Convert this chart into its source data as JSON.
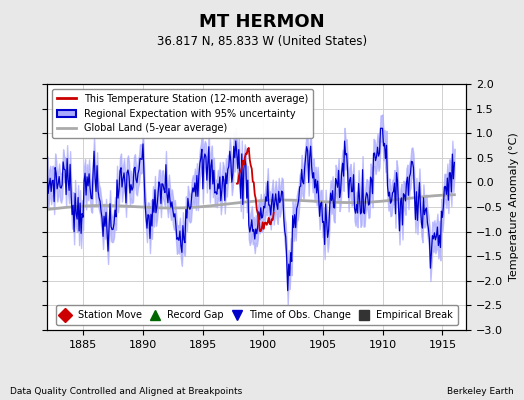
{
  "title": "MT HERMON",
  "subtitle": "36.817 N, 85.833 W (United States)",
  "xlabel_left": "Data Quality Controlled and Aligned at Breakpoints",
  "xlabel_right": "Berkeley Earth",
  "ylabel": "Temperature Anomaly (°C)",
  "xlim": [
    1882,
    1917
  ],
  "ylim": [
    -3,
    2
  ],
  "yticks": [
    -3,
    -2.5,
    -2,
    -1.5,
    -1,
    -0.5,
    0,
    0.5,
    1,
    1.5,
    2
  ],
  "xticks": [
    1885,
    1890,
    1895,
    1900,
    1905,
    1910,
    1915
  ],
  "bg_color": "#e8e8e8",
  "plot_bg_color": "#ffffff",
  "grid_color": "#cccccc",
  "blue_line_color": "#0000cc",
  "blue_fill_color": "#aaaaff",
  "red_line_color": "#cc0000",
  "gray_line_color": "#aaaaaa",
  "legend1_labels": [
    "This Temperature Station (12-month average)",
    "Regional Expectation with 95% uncertainty",
    "Global Land (5-year average)"
  ],
  "legend2_labels": [
    "Station Move",
    "Record Gap",
    "Time of Obs. Change",
    "Empirical Break"
  ],
  "legend2_colors": [
    "#cc0000",
    "#006600",
    "#0000cc",
    "#333333"
  ],
  "legend2_markers": [
    "D",
    "^",
    "v",
    "s"
  ],
  "time_start": 1882,
  "time_end": 1916,
  "n_points": 409
}
